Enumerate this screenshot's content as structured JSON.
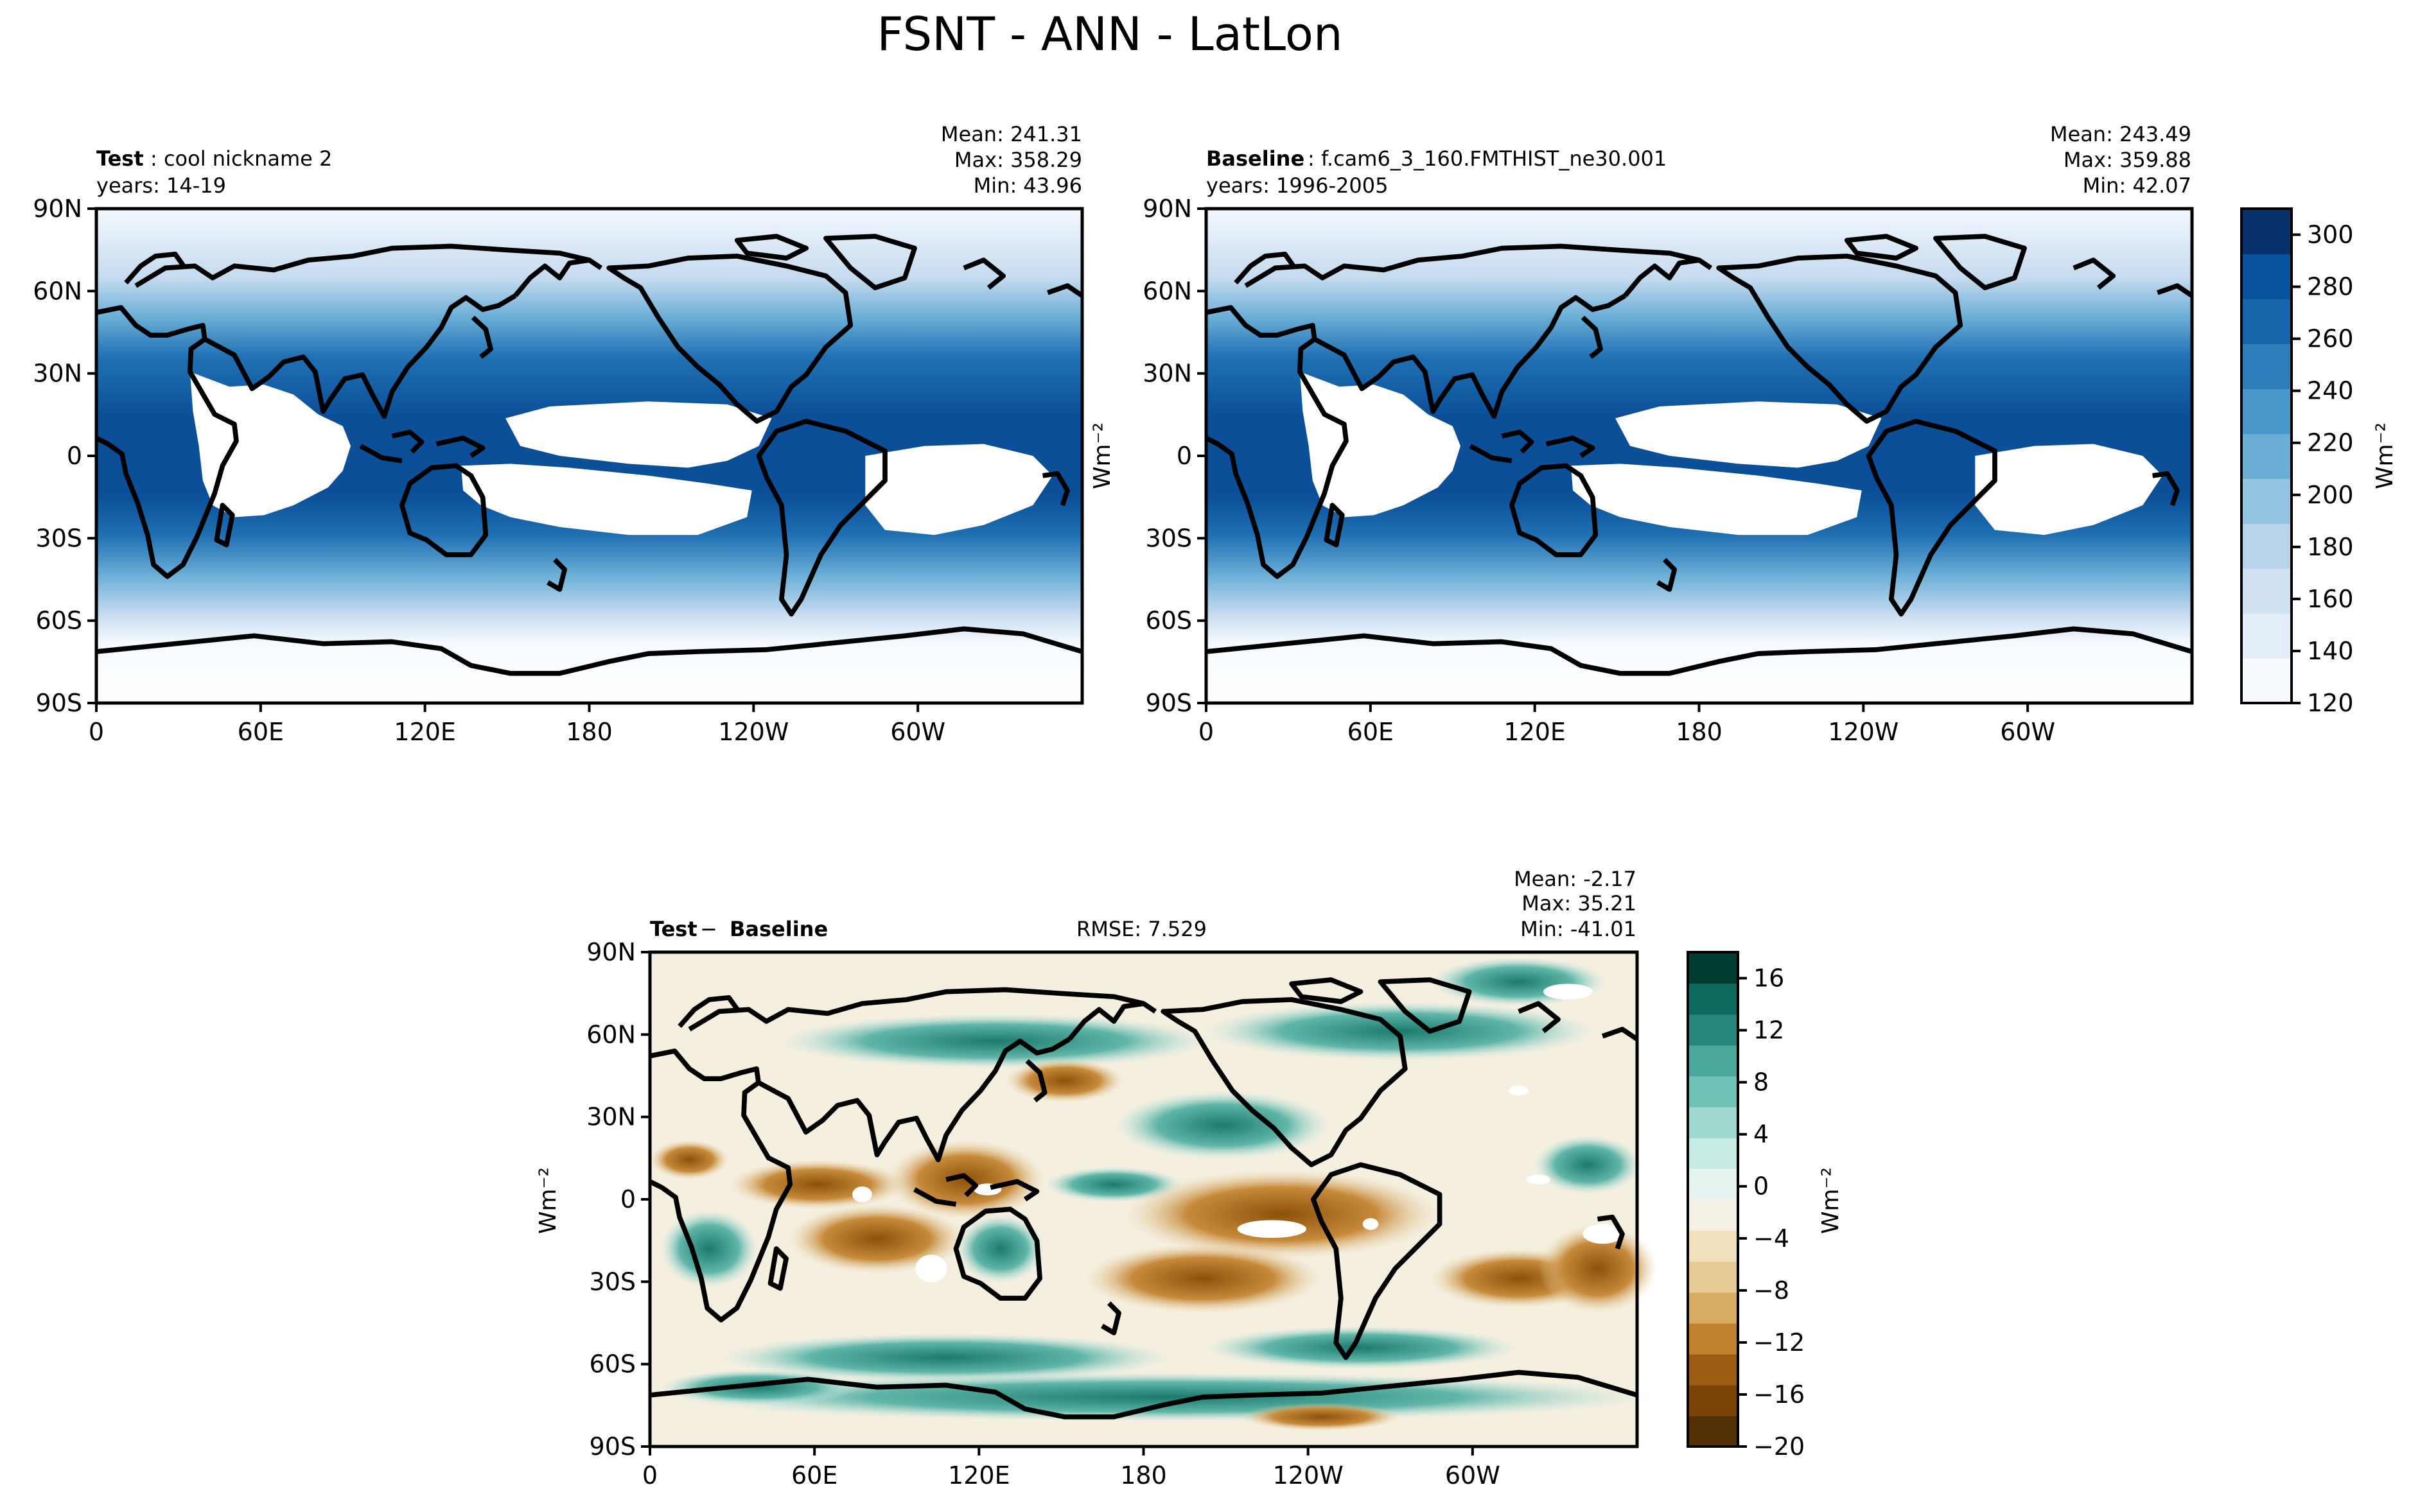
{
  "figure": {
    "title": "FSNT - ANN - LatLon"
  },
  "panels": {
    "test": {
      "label_bold": "Test",
      "label_rest": ": cool nickname 2",
      "years": "years: 14-19",
      "stats": {
        "mean": "Mean: 241.31",
        "max": "Max: 358.29",
        "min": "Min: 43.96"
      }
    },
    "baseline": {
      "label_bold": "Baseline",
      "label_rest": ": f.cam6_3_160.FMTHIST_ne30.001",
      "years": "years: 1996-2005",
      "stats": {
        "mean": "Mean: 243.49",
        "max": "Max: 359.88",
        "min": "Min: 42.07"
      },
      "ylabel": "Wm⁻²"
    },
    "diff": {
      "label_test": "Test",
      "label_minus": " − ",
      "label_base": "Baseline",
      "rmse": "RMSE: 7.529",
      "stats": {
        "mean": "Mean: -2.17",
        "max": "Max: 35.21",
        "min": "Min: -41.01"
      },
      "ylabel": "Wm⁻²"
    }
  },
  "axes": {
    "lat_ticks": [
      "90N",
      "60N",
      "30N",
      "0",
      "30S",
      "60S",
      "90S"
    ],
    "lon_ticks": [
      "0",
      "60E",
      "120E",
      "180",
      "120W",
      "60W"
    ]
  },
  "colorbars": {
    "main": {
      "label": "Wm⁻²",
      "ticks": [
        "120",
        "140",
        "160",
        "180",
        "200",
        "220",
        "240",
        "260",
        "280",
        "300"
      ],
      "colors": [
        "#f7fbff",
        "#e3eef9",
        "#d0e1f2",
        "#b7d4ea",
        "#94c4df",
        "#6aaed6",
        "#4a98c9",
        "#2e7ebc",
        "#1764ab",
        "#08519c",
        "#08306b"
      ]
    },
    "diff": {
      "label": "Wm⁻²",
      "ticks": [
        "16",
        "12",
        "8",
        "4",
        "0",
        "−4",
        "−8",
        "−12",
        "−16",
        "−20"
      ],
      "colors": [
        "#543005",
        "#7a4507",
        "#9c5b12",
        "#bf812d",
        "#d6ac64",
        "#e6cc94",
        "#f1e0bc",
        "#f5f1e4",
        "#e6f3f1",
        "#c7eae5",
        "#9fd9cf",
        "#72c3b7",
        "#4aa79c",
        "#27877e",
        "#0f6a60",
        "#003c30"
      ]
    }
  }
}
